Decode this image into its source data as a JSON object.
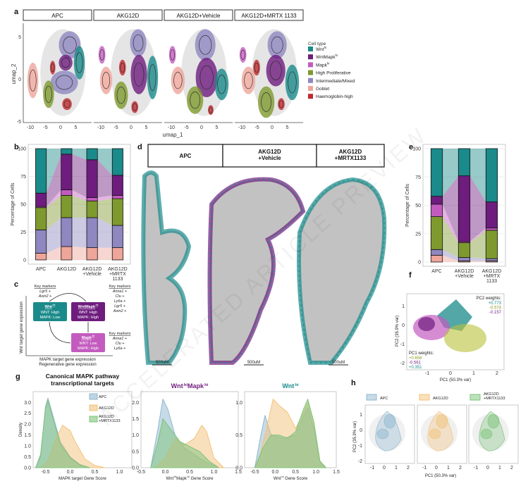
{
  "colors": {
    "wnt_hi": "#1a8a8a",
    "wntmapk_hi": "#6e1c7e",
    "mapk_hi": "#c35bbf",
    "high_proliferative": "#7e9a2e",
    "intermediate_mixed": "#8e87c0",
    "goblet": "#eea59a",
    "haemoglobin_high": "#c0282c",
    "apc": "#8fb7d0",
    "akg12d": "#f3c27a",
    "mrtx": "#7cc47a"
  },
  "watermark": "ACCELERATED ARTICLE PREVIEW",
  "panel_a": {
    "label": "a",
    "facets": [
      "APC",
      "AKG12D",
      "AKG12D+Vehicle",
      "AKG12D+MRTX 1133"
    ],
    "xlabel": "umap_1",
    "ylabel": "umap_2",
    "xticks": [
      "-10",
      "-5",
      "0",
      "5"
    ],
    "yticks": [
      "5",
      "0",
      "-5"
    ],
    "legend_title": "Cell type",
    "legend": [
      {
        "label": "Wnt",
        "sup": "hi",
        "color": "#1a8a8a"
      },
      {
        "label": "WntMapk",
        "sup": "hi",
        "color": "#6e1c7e"
      },
      {
        "label": "Mapk",
        "sup": "hi",
        "color": "#c35bbf"
      },
      {
        "label": "High Proliferative",
        "sup": "",
        "color": "#7e9a2e"
      },
      {
        "label": "Intermediate/Mixed",
        "sup": "",
        "color": "#8e87c0"
      },
      {
        "label": "Goblet",
        "sup": "",
        "color": "#eea59a"
      },
      {
        "label": "Haemoglobin-high",
        "sup": "",
        "color": "#c0282c"
      }
    ]
  },
  "chart_data": [
    {
      "panel": "b",
      "type": "bar",
      "stacked": true,
      "ylabel": "Percentage of Cells",
      "ylim": [
        0,
        100
      ],
      "yticks": [
        0,
        25,
        50,
        75,
        100
      ],
      "categories": [
        "APC",
        "AKG12D",
        "AKG12D\n+Vehicle",
        "AKG12D\n+MRTX\n1133"
      ],
      "series": [
        {
          "key": "goblet",
          "values": [
            6,
            12,
            11,
            11
          ]
        },
        {
          "key": "intermediate_mixed",
          "values": [
            21,
            26,
            27,
            20
          ]
        },
        {
          "key": "high_proliferative",
          "values": [
            20,
            20,
            15,
            24
          ]
        },
        {
          "key": "mapk_hi",
          "values": [
            1,
            5,
            3,
            3
          ]
        },
        {
          "key": "wntmapk_hi",
          "values": [
            12,
            32,
            34,
            18
          ]
        },
        {
          "key": "wnt_hi",
          "values": [
            40,
            5,
            10,
            24
          ]
        }
      ]
    },
    {
      "panel": "e",
      "type": "bar",
      "stacked": true,
      "ylabel": "Percentage of Cells",
      "ylim": [
        0,
        100
      ],
      "yticks": [
        0,
        25,
        50,
        75,
        100
      ],
      "categories": [
        "APC",
        "AKG12D\n+Vehicle",
        "AKG12D\n+MRTX\n1133"
      ],
      "series": [
        {
          "key": "goblet",
          "values": [
            6,
            1,
            1
          ]
        },
        {
          "key": "intermediate_mixed",
          "values": [
            5,
            3,
            2
          ]
        },
        {
          "key": "high_proliferative",
          "values": [
            29,
            13,
            25
          ]
        },
        {
          "key": "mapk_hi",
          "values": [
            11,
            1,
            2
          ]
        },
        {
          "key": "wntmapk_hi",
          "values": [
            7,
            58,
            23
          ]
        },
        {
          "key": "wnt_hi",
          "values": [
            42,
            24,
            47
          ]
        }
      ]
    },
    {
      "panel": "g1",
      "type": "area",
      "title": "Canonical MAPK pathway\ntranscriptional targets",
      "xlabel": "MAPK target Gene Score",
      "ylabel": "Density",
      "xlim": [
        -0.75,
        1.25
      ],
      "ylim": [
        0,
        3.3
      ],
      "xticks": [
        -0.5,
        0.0,
        0.5,
        1.0
      ],
      "yticks": [
        0.0,
        0.5,
        1.0,
        1.5,
        2.0,
        2.5,
        3.0
      ],
      "legend": [
        "APC",
        "AKG12D",
        "AKG12D\n+MRTX1133"
      ],
      "series": [
        {
          "key": "apc",
          "points": [
            [
              -0.7,
              0
            ],
            [
              -0.6,
              0.5
            ],
            [
              -0.5,
              2.8
            ],
            [
              -0.45,
              3.2
            ],
            [
              -0.35,
              2.4
            ],
            [
              -0.2,
              1.2
            ],
            [
              0,
              0.5
            ],
            [
              0.2,
              0.15
            ],
            [
              0.4,
              0
            ]
          ]
        },
        {
          "key": "akg12d",
          "points": [
            [
              -0.6,
              0
            ],
            [
              -0.45,
              0.3
            ],
            [
              -0.3,
              1.3
            ],
            [
              -0.15,
              1.95
            ],
            [
              0,
              1.7
            ],
            [
              0.1,
              1.2
            ],
            [
              0.3,
              0.4
            ],
            [
              0.5,
              0.1
            ],
            [
              0.7,
              0
            ]
          ]
        },
        {
          "key": "mrtx",
          "points": [
            [
              -0.7,
              0
            ],
            [
              -0.6,
              0.6
            ],
            [
              -0.5,
              2.7
            ],
            [
              -0.45,
              3.1
            ],
            [
              -0.35,
              2.3
            ],
            [
              -0.2,
              1.1
            ],
            [
              0,
              0.45
            ],
            [
              0.2,
              0.12
            ],
            [
              0.4,
              0
            ]
          ]
        }
      ]
    },
    {
      "panel": "g2",
      "type": "area",
      "title": "Wnt^hiMapk^hi",
      "xlabel": "Wnt^hiMapk^hi Gene Score",
      "ylabel": "",
      "xlim": [
        -0.5,
        1.5
      ],
      "ylim": [
        0,
        2.2
      ],
      "xticks": [
        -0.5,
        0.0,
        0.5,
        1.0,
        1.5
      ],
      "yticks": [
        0.0,
        0.5,
        1.0,
        1.5,
        2.0
      ],
      "series": [
        {
          "key": "apc",
          "points": [
            [
              -0.3,
              0
            ],
            [
              -0.15,
              1.2
            ],
            [
              -0.05,
              2.1
            ],
            [
              0.05,
              1.8
            ],
            [
              0.2,
              1.0
            ],
            [
              0.4,
              0.6
            ],
            [
              0.6,
              0.4
            ],
            [
              0.8,
              0.2
            ],
            [
              1.1,
              0
            ]
          ]
        },
        {
          "key": "akg12d",
          "points": [
            [
              -0.2,
              0
            ],
            [
              0,
              0.3
            ],
            [
              0.2,
              0.9
            ],
            [
              0.4,
              0.7
            ],
            [
              0.6,
              0.9
            ],
            [
              0.75,
              1.3
            ],
            [
              0.85,
              1.1
            ],
            [
              1.0,
              0.3
            ],
            [
              1.2,
              0
            ]
          ]
        },
        {
          "key": "mrtx",
          "points": [
            [
              -0.3,
              0
            ],
            [
              -0.15,
              0.8
            ],
            [
              -0.05,
              1.5
            ],
            [
              0.1,
              1.2
            ],
            [
              0.3,
              0.8
            ],
            [
              0.5,
              0.65
            ],
            [
              0.7,
              0.5
            ],
            [
              0.9,
              0.2
            ],
            [
              1.1,
              0
            ]
          ]
        }
      ]
    },
    {
      "panel": "g3",
      "type": "area",
      "title": "Wnt^hi",
      "xlabel": "Wnt^hi Gene Score",
      "ylabel": "",
      "xlim": [
        -0.75,
        1.5
      ],
      "ylim": [
        0,
        1.1
      ],
      "xticks": [
        -0.5,
        0.0,
        0.5,
        1.0,
        1.5
      ],
      "yticks": [
        0.0,
        0.5,
        1.0
      ],
      "series": [
        {
          "key": "apc",
          "points": [
            [
              -0.5,
              0
            ],
            [
              -0.35,
              0.5
            ],
            [
              -0.25,
              0.8
            ],
            [
              -0.1,
              0.5
            ],
            [
              0.2,
              0.45
            ],
            [
              0.5,
              0.5
            ],
            [
              0.7,
              0.8
            ],
            [
              0.8,
              0.92
            ],
            [
              0.95,
              0.6
            ],
            [
              1.1,
              0.1
            ],
            [
              1.25,
              0
            ]
          ]
        },
        {
          "key": "akg12d",
          "points": [
            [
              -0.45,
              0
            ],
            [
              -0.25,
              0.5
            ],
            [
              -0.05,
              1.05
            ],
            [
              0.1,
              0.95
            ],
            [
              0.3,
              0.85
            ],
            [
              0.5,
              0.6
            ],
            [
              0.7,
              0.85
            ],
            [
              0.8,
              1.0
            ],
            [
              0.95,
              0.7
            ],
            [
              1.1,
              0.1
            ],
            [
              1.25,
              0
            ]
          ]
        },
        {
          "key": "mrtx",
          "points": [
            [
              -0.5,
              0
            ],
            [
              -0.3,
              0.3
            ],
            [
              -0.1,
              0.5
            ],
            [
              0.1,
              0.5
            ],
            [
              0.3,
              0.45
            ],
            [
              0.5,
              0.55
            ],
            [
              0.7,
              0.9
            ],
            [
              0.8,
              1.05
            ],
            [
              0.95,
              0.7
            ],
            [
              1.1,
              0.1
            ],
            [
              1.25,
              0
            ]
          ]
        }
      ]
    }
  ],
  "panel_c": {
    "label": "c",
    "ylabel": "Wnt target gene expression",
    "xlabel_1": "MAPK target gene expression",
    "xlabel_2": "Regenerative gene expression",
    "boxes": [
      {
        "title": "Wnt^hi",
        "line1": "WNT: High",
        "line2": "MAPK: Low",
        "color": "#1a8a8a"
      },
      {
        "title": "WntMapk^hi",
        "line1": "WNT: High",
        "line2": "MAPK: High",
        "color": "#6e1c7e"
      },
      {
        "title": "Mapk^hi",
        "line1": "WNT: Low",
        "line2": "MAPK: High",
        "color": "#c35bbf"
      }
    ],
    "markers": [
      {
        "title": "Key markers",
        "genes": [
          "Lgr5 +",
          "Axin2 +"
        ]
      },
      {
        "title": "Key markers",
        "genes": [
          "Anxa1 +",
          "Clu +",
          "Ly6a +",
          "Lgr5 +",
          "Axin2 +"
        ]
      },
      {
        "title": "Key markers",
        "genes": [
          "Anxa1 +",
          "Clu +",
          "Ly6a +"
        ]
      }
    ]
  },
  "panel_d": {
    "label": "d",
    "headers": [
      "APC",
      "AKG12D\n+Vehicle",
      "AKG12D\n+MRTX1133"
    ],
    "scale_bar": "500uM"
  },
  "panel_e": {
    "label": "e"
  },
  "panel_f": {
    "label": "f",
    "xlabel": "PC1 (50.3% var)",
    "ylabel": "PC2 (35.9% var)",
    "xticks": [
      "-1",
      "0",
      "1",
      "2"
    ],
    "yticks": [
      "1",
      "0",
      "-1",
      "-2"
    ],
    "pc2_title": "PC2 weights:",
    "pc2_weights": [
      "+0.773",
      "-0.574",
      "-0.157"
    ],
    "pc1_title": "PC1 weights:",
    "pc1_weights": [
      "+0.658",
      "-0.561",
      "+0.351"
    ]
  },
  "panel_g": {
    "label": "g"
  },
  "panel_h": {
    "label": "h",
    "legend": [
      "APC",
      "AKG12D",
      "AKG12D\n+MRTX1133"
    ],
    "xlabel": "PC1 (50.3% var)",
    "ylabel": "PC2 (35.9% var)",
    "xticks": [
      "-1",
      "0",
      "1",
      "2"
    ],
    "yticks": [
      "1",
      "0",
      "-1",
      "-2"
    ]
  }
}
